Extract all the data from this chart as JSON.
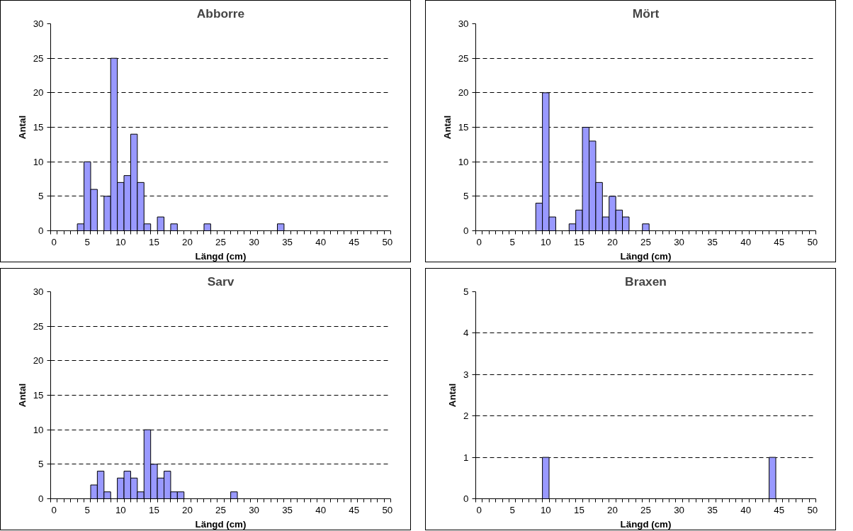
{
  "chart_data": [
    {
      "type": "bar",
      "title": "Abborre",
      "xlabel": "Längd (cm)",
      "ylabel": "Antal",
      "color": "#9999ff",
      "grid": "y",
      "categories": [
        "0",
        null,
        null,
        null,
        null,
        "5",
        null,
        null,
        null,
        null,
        "10",
        null,
        null,
        null,
        null,
        "15",
        null,
        null,
        null,
        null,
        "20",
        null,
        null,
        null,
        null,
        "25",
        null,
        null,
        null,
        null,
        "30",
        null,
        null,
        null,
        null,
        "35",
        null,
        null,
        null,
        null,
        "40",
        null,
        null,
        null,
        null,
        "45",
        null,
        null,
        null,
        null,
        "50"
      ],
      "values": [
        0,
        0,
        0,
        0,
        1,
        10,
        6,
        0,
        5,
        25,
        7,
        8,
        14,
        7,
        1,
        0,
        2,
        0,
        1,
        0,
        0,
        0,
        0,
        1,
        0,
        0,
        0,
        0,
        0,
        0,
        0,
        0,
        0,
        0,
        1,
        0,
        0,
        0,
        0,
        0,
        0,
        0,
        0,
        0,
        0,
        0,
        0,
        0,
        0,
        0,
        0
      ],
      "ylim": [
        0,
        30
      ],
      "yticks": [
        0,
        5,
        10,
        15,
        20,
        25,
        30
      ]
    },
    {
      "type": "bar",
      "title": "Mört",
      "xlabel": "Längd (cm)",
      "ylabel": "Antal",
      "color": "#9999ff",
      "grid": "y",
      "categories": [
        "0",
        null,
        null,
        null,
        null,
        "5",
        null,
        null,
        null,
        null,
        "10",
        null,
        null,
        null,
        null,
        "15",
        null,
        null,
        null,
        null,
        "20",
        null,
        null,
        null,
        null,
        "25",
        null,
        null,
        null,
        null,
        "30",
        null,
        null,
        null,
        null,
        "35",
        null,
        null,
        null,
        null,
        "40",
        null,
        null,
        null,
        null,
        "45",
        null,
        null,
        null,
        null,
        "50"
      ],
      "values": [
        0,
        0,
        0,
        0,
        0,
        0,
        0,
        0,
        0,
        4,
        20,
        2,
        0,
        0,
        1,
        3,
        15,
        13,
        7,
        2,
        5,
        3,
        2,
        0,
        0,
        1,
        0,
        0,
        0,
        0,
        0,
        0,
        0,
        0,
        0,
        0,
        0,
        0,
        0,
        0,
        0,
        0,
        0,
        0,
        0,
        0,
        0,
        0,
        0,
        0,
        0
      ],
      "ylim": [
        0,
        30
      ],
      "yticks": [
        0,
        5,
        10,
        15,
        20,
        25,
        30
      ]
    },
    {
      "type": "bar",
      "title": "Sarv",
      "xlabel": "Längd (cm)",
      "ylabel": "Antal",
      "color": "#9999ff",
      "grid": "y",
      "categories": [
        "0",
        null,
        null,
        null,
        null,
        "5",
        null,
        null,
        null,
        null,
        "10",
        null,
        null,
        null,
        null,
        "15",
        null,
        null,
        null,
        null,
        "20",
        null,
        null,
        null,
        null,
        "25",
        null,
        null,
        null,
        null,
        "30",
        null,
        null,
        null,
        null,
        "35",
        null,
        null,
        null,
        null,
        "40",
        null,
        null,
        null,
        null,
        "45",
        null,
        null,
        null,
        null,
        "50"
      ],
      "values": [
        0,
        0,
        0,
        0,
        0,
        0,
        2,
        4,
        1,
        0,
        3,
        4,
        3,
        1,
        10,
        5,
        3,
        4,
        1,
        1,
        0,
        0,
        0,
        0,
        0,
        0,
        0,
        1,
        0,
        0,
        0,
        0,
        0,
        0,
        0,
        0,
        0,
        0,
        0,
        0,
        0,
        0,
        0,
        0,
        0,
        0,
        0,
        0,
        0,
        0,
        0
      ],
      "ylim": [
        0,
        30
      ],
      "yticks": [
        0,
        5,
        10,
        15,
        20,
        25,
        30
      ]
    },
    {
      "type": "bar",
      "title": "Braxen",
      "xlabel": "Längd (cm)",
      "ylabel": "Antal",
      "color": "#9999ff",
      "grid": "y",
      "categories": [
        "0",
        null,
        null,
        null,
        null,
        "5",
        null,
        null,
        null,
        null,
        "10",
        null,
        null,
        null,
        null,
        "15",
        null,
        null,
        null,
        null,
        "20",
        null,
        null,
        null,
        null,
        "25",
        null,
        null,
        null,
        null,
        "30",
        null,
        null,
        null,
        null,
        "35",
        null,
        null,
        null,
        null,
        "40",
        null,
        null,
        null,
        null,
        "45",
        null,
        null,
        null,
        null,
        "50"
      ],
      "values": [
        0,
        0,
        0,
        0,
        0,
        0,
        0,
        0,
        0,
        0,
        1,
        0,
        0,
        0,
        0,
        0,
        0,
        0,
        0,
        0,
        0,
        0,
        0,
        0,
        0,
        0,
        0,
        0,
        0,
        0,
        0,
        0,
        0,
        0,
        0,
        0,
        0,
        0,
        0,
        0,
        0,
        0,
        0,
        0,
        1,
        0,
        0,
        0,
        0,
        0,
        0
      ],
      "ylim": [
        0,
        5
      ],
      "yticks": [
        0,
        1,
        2,
        3,
        4,
        5
      ]
    }
  ]
}
